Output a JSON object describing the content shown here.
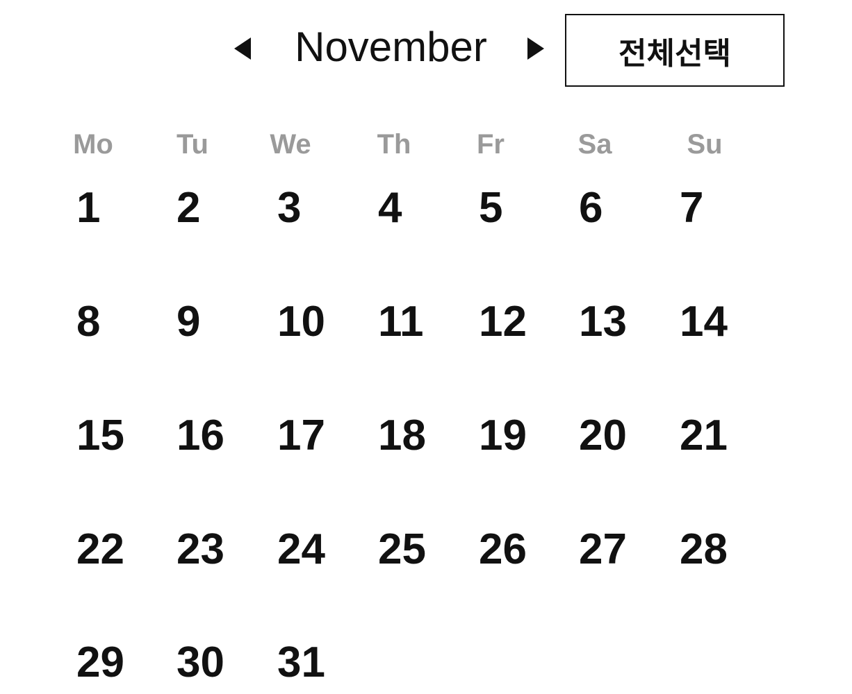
{
  "header": {
    "month": "November",
    "select_all_label": "전체선택",
    "prev_icon": "triangle-left-icon",
    "next_icon": "triangle-right-icon"
  },
  "weekdays": [
    "Mo",
    "Tu",
    "We",
    "Th",
    "Fr",
    "Sa",
    "Su"
  ],
  "days": [
    "1",
    "2",
    "3",
    "4",
    "5",
    "6",
    "7",
    "8",
    "9",
    "10",
    "11",
    "12",
    "13",
    "14",
    "15",
    "16",
    "17",
    "18",
    "19",
    "20",
    "21",
    "22",
    "23",
    "24",
    "25",
    "26",
    "27",
    "28",
    "29",
    "30",
    "31"
  ],
  "colors": {
    "text": "#111111",
    "weekday": "#9a9a9a",
    "background": "#ffffff"
  }
}
